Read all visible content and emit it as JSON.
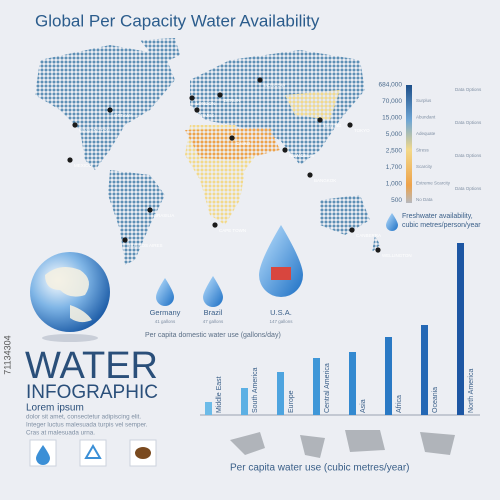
{
  "title": "Global Per Capacity Water Availability",
  "map": {
    "cities": [
      "WASHINGTON",
      "OTTAWA",
      "MEXICO",
      "LONDON",
      "PARIS",
      "BERLIN",
      "MOSCOW",
      "CAIRO",
      "NEW DELHI",
      "BEIJING",
      "TOKYO",
      "BANGKOK",
      "BRASILIA",
      "BUENOS AIRES",
      "CAPE TOWN",
      "CANBERRA",
      "WELLINGTON"
    ]
  },
  "legend": {
    "numbers": [
      "684,000",
      "70,000",
      "15,000",
      "5,000",
      "2,500",
      "1,700",
      "1,000",
      "500"
    ],
    "labels": [
      "Surplus",
      "Abundant",
      "Adequate",
      "Stress",
      "Scarcity",
      "Extreme Scarcity",
      "No Data"
    ],
    "options": [
      "Data Options",
      "Data Options",
      "Data Options",
      "Data Options"
    ]
  },
  "freshwater_note": [
    "Freshwater availability,",
    "cubic metres/person/year"
  ],
  "countries": [
    {
      "name": "Germany",
      "usage": "41 gallons"
    },
    {
      "name": "Brazil",
      "usage": "47 gallons"
    },
    {
      "name": "U.S.A.",
      "usage": "147 gallons"
    }
  ],
  "domestic_caption": "Per capita domestic water use (gallons/day)",
  "heading": "WATER",
  "subheading": "INFOGRAPHIC",
  "lorem_title": "Lorem ipsum",
  "lorem_lines": [
    "dolor sit amet, consectetur adipiscing elit.",
    "Integer luctus malesuada turpis vel semper.",
    "Cras at malesuada urna."
  ],
  "stock_id": "71134304",
  "chart_data": {
    "type": "bar",
    "categories": [
      "Middle East",
      "South America",
      "Europe",
      "Central America",
      "Asia",
      "Africa",
      "Oceania",
      "North America"
    ],
    "values": [
      13,
      27,
      43,
      57,
      63,
      78,
      90,
      172
    ],
    "colors": [
      "#6cbbe8",
      "#5cb0e4",
      "#4ea4df",
      "#3f97d8",
      "#3389d0",
      "#2a79c4",
      "#2468b5",
      "#1d56a3"
    ],
    "xlabel": "Per capita water use (cubic metres/year)"
  }
}
